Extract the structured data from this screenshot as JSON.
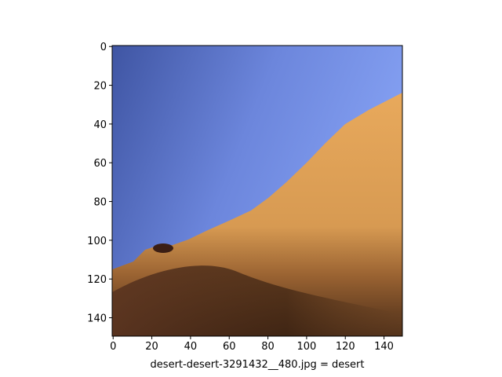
{
  "chart_data": {
    "type": "image",
    "xlabel": "desert-desert-3291432__480.jpg = desert",
    "xlim": [
      -0.5,
      149.5
    ],
    "ylim": [
      149.5,
      -0.5
    ],
    "xticks": [
      0,
      20,
      40,
      60,
      80,
      100,
      120,
      140
    ],
    "yticks": [
      0,
      20,
      40,
      60,
      80,
      100,
      120,
      140
    ]
  }
}
